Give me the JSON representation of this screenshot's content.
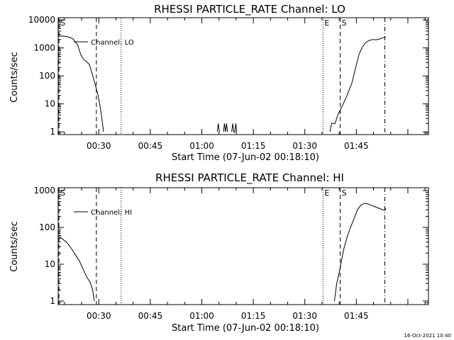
{
  "footer": {
    "timestamp": "16-Oct-2021 10:40"
  },
  "colors": {
    "background": "#ffffff",
    "foreground": "#000000"
  },
  "chart_data": [
    {
      "type": "line",
      "title": "RHESSI PARTICLE_RATE Channel: LO",
      "xlabel": "Start Time (07-Jun-02 00:18:10)",
      "ylabel": "Counts/sec",
      "y_scale": "log",
      "ylim": [
        0.8,
        12000
      ],
      "xlim_minutes": [
        18.17,
        126.0
      ],
      "x_ticks": [
        {
          "minute": 30,
          "label": "00:30"
        },
        {
          "minute": 45,
          "label": "00:45"
        },
        {
          "minute": 60,
          "label": "01:00"
        },
        {
          "minute": 75,
          "label": "01:15"
        },
        {
          "minute": 90,
          "label": "01:30"
        },
        {
          "minute": 105,
          "label": "01:45"
        }
      ],
      "y_ticks": [
        {
          "value": 1,
          "label": "1"
        },
        {
          "value": 10,
          "label": "10"
        },
        {
          "value": 100,
          "label": "100"
        },
        {
          "value": 1000,
          "label": "1000"
        },
        {
          "value": 10000,
          "label": "10000"
        }
      ],
      "legend": {
        "label": "Channel: LO",
        "position": "top-left"
      },
      "markers": [
        {
          "minute": 18.4,
          "style": "dashed",
          "label": "S"
        },
        {
          "minute": 29.3,
          "style": "dashed",
          "label": ""
        },
        {
          "minute": 36.5,
          "style": "dotted",
          "label": ""
        },
        {
          "minute": 95.3,
          "style": "dotted",
          "label": "E"
        },
        {
          "minute": 100.3,
          "style": "dashed",
          "label": "S"
        },
        {
          "minute": 113.3,
          "style": "dashdot",
          "label": ""
        }
      ],
      "series": [
        {
          "name": "Channel: LO",
          "segments": [
            [
              [
                18.2,
                2600
              ],
              [
                19.5,
                2650
              ],
              [
                21,
                2500
              ],
              [
                22.5,
                2100
              ],
              [
                23.8,
                1300
              ],
              [
                24.7,
                600
              ],
              [
                25.6,
                380
              ],
              [
                26.5,
                320
              ],
              [
                27.3,
                250
              ],
              [
                27.9,
                140
              ],
              [
                28.6,
                70
              ],
              [
                29.2,
                38
              ],
              [
                29.8,
                20
              ],
              [
                30.4,
                8
              ],
              [
                30.9,
                3
              ],
              [
                31.4,
                1
              ]
            ],
            [
              [
                64.5,
                1
              ],
              [
                64.8,
                2
              ],
              [
                65.1,
                1
              ]
            ],
            [
              [
                66.3,
                1
              ],
              [
                66.6,
                2
              ],
              [
                66.9,
                1
              ],
              [
                67.2,
                2
              ],
              [
                67.5,
                1
              ]
            ],
            [
              [
                68.7,
                1
              ],
              [
                69.0,
                2
              ],
              [
                69.3,
                1
              ],
              [
                69.6,
                1
              ],
              [
                69.9,
                2
              ],
              [
                70.2,
                1
              ]
            ],
            [
              [
                97.3,
                1
              ],
              [
                97.8,
                2
              ],
              [
                98.8,
                2
              ],
              [
                99.6,
                4
              ],
              [
                100.8,
                8
              ],
              [
                102.3,
                20
              ],
              [
                103.8,
                60
              ],
              [
                104.8,
                200
              ],
              [
                105.8,
                600
              ],
              [
                106.8,
                1100
              ],
              [
                107.8,
                1600
              ],
              [
                108.8,
                1850
              ],
              [
                109.8,
                2000
              ],
              [
                110.8,
                1950
              ],
              [
                111.8,
                2100
              ],
              [
                112.8,
                2300
              ],
              [
                113.5,
                2500
              ]
            ]
          ]
        }
      ]
    },
    {
      "type": "line",
      "title": "RHESSI PARTICLE_RATE Channel: HI",
      "xlabel": "Start Time (07-Jun-02 00:18:10)",
      "ylabel": "Counts/sec",
      "y_scale": "log",
      "ylim": [
        0.8,
        1200
      ],
      "xlim_minutes": [
        18.17,
        126.0
      ],
      "x_ticks": [
        {
          "minute": 30,
          "label": "00:30"
        },
        {
          "minute": 45,
          "label": "00:45"
        },
        {
          "minute": 60,
          "label": "01:00"
        },
        {
          "minute": 75,
          "label": "01:15"
        },
        {
          "minute": 90,
          "label": "01:30"
        },
        {
          "minute": 105,
          "label": "01:45"
        }
      ],
      "y_ticks": [
        {
          "value": 1,
          "label": "1"
        },
        {
          "value": 10,
          "label": "10"
        },
        {
          "value": 100,
          "label": "100"
        },
        {
          "value": 1000,
          "label": "1000"
        }
      ],
      "legend": {
        "label": "Channel: HI",
        "position": "top-left"
      },
      "markers": [
        {
          "minute": 18.4,
          "style": "dashed",
          "label": "S"
        },
        {
          "minute": 29.3,
          "style": "dashed",
          "label": ""
        },
        {
          "minute": 36.5,
          "style": "dotted",
          "label": ""
        },
        {
          "minute": 95.3,
          "style": "dotted",
          "label": "E"
        },
        {
          "minute": 100.3,
          "style": "dashed",
          "label": "S"
        },
        {
          "minute": 113.3,
          "style": "dashdot",
          "label": ""
        }
      ],
      "series": [
        {
          "name": "Channel: HI",
          "segments": [
            [
              [
                18.2,
                60
              ],
              [
                19.5,
                48
              ],
              [
                20.8,
                38
              ],
              [
                22,
                27
              ],
              [
                23.2,
                18
              ],
              [
                24.4,
                12
              ],
              [
                25.5,
                7
              ],
              [
                26.5,
                4.5
              ],
              [
                27.5,
                3.2
              ],
              [
                28.2,
                2
              ],
              [
                28.7,
                1
              ]
            ],
            [
              [
                98.6,
                1
              ],
              [
                99.3,
                3
              ],
              [
                100.3,
                8
              ],
              [
                101.3,
                25
              ],
              [
                102.3,
                55
              ],
              [
                103.3,
                100
              ],
              [
                104.3,
                170
              ],
              [
                105.3,
                300
              ],
              [
                106.3,
                400
              ],
              [
                107.3,
                450
              ],
              [
                108.3,
                440
              ],
              [
                109.3,
                400
              ],
              [
                110.3,
                370
              ],
              [
                111.3,
                340
              ],
              [
                112.3,
                310
              ],
              [
                113.3,
                290
              ],
              [
                113.6,
                330
              ]
            ]
          ]
        }
      ]
    }
  ]
}
